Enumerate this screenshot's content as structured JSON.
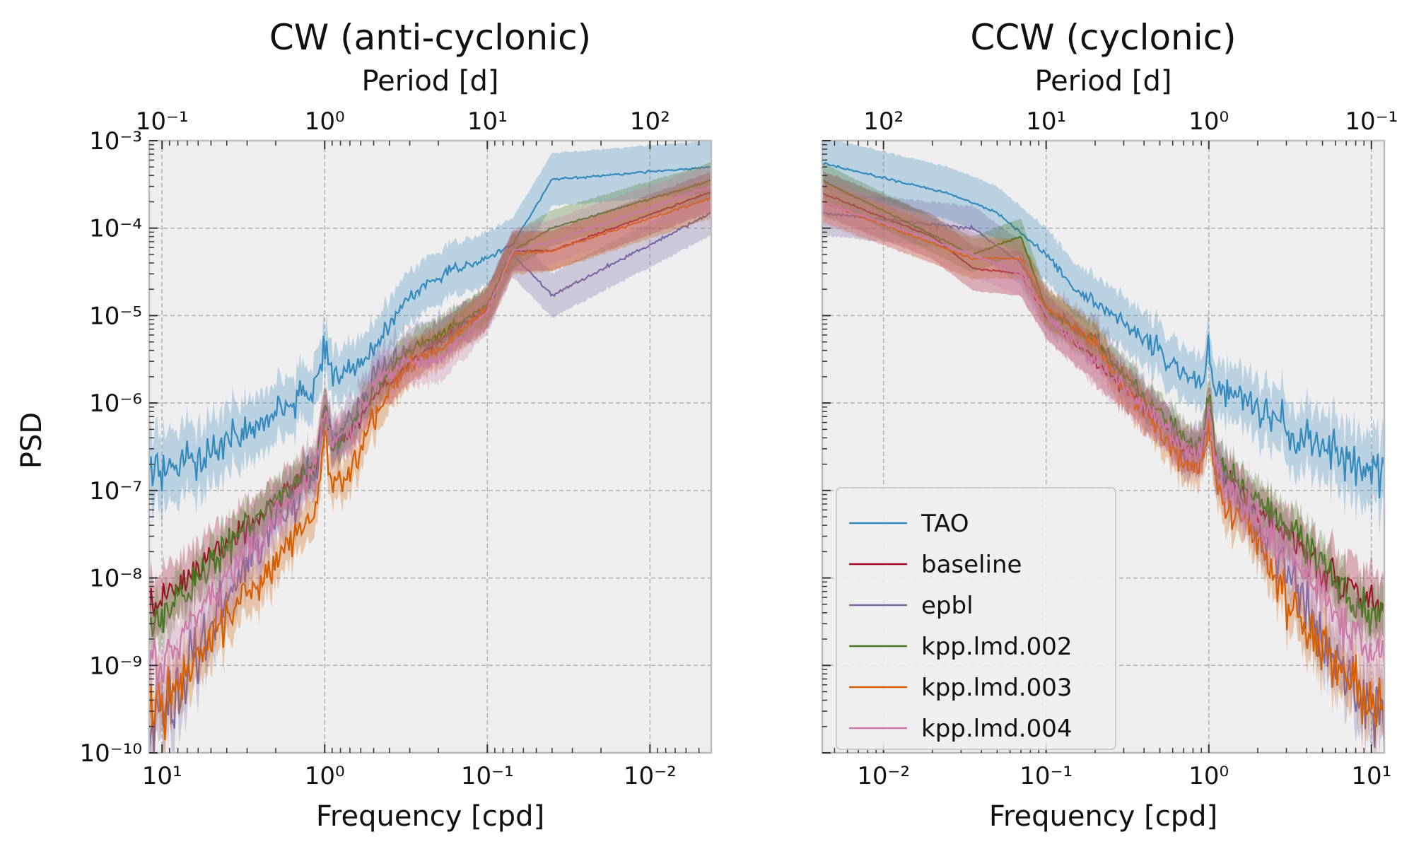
{
  "figure": {
    "ylabel": "PSD",
    "frame_color": "#bbbbbb",
    "plot_bg": "#eeeeee",
    "grid_color": "#b0b0b0"
  },
  "chart_data": [
    {
      "type": "line",
      "title": "CW (anti-cyclonic)",
      "xlabel": "Frequency [cpd]",
      "top_xlabel": "Period [d]",
      "ylabel": "PSD",
      "xscale": "log",
      "yscale": "log",
      "x_direction": "reversed",
      "xlim": [
        12,
        0.0042
      ],
      "ylim": [
        1e-10,
        0.001
      ],
      "grid": true,
      "bottom_ticks": [
        {
          "value": 10,
          "label": "10¹"
        },
        {
          "value": 1,
          "label": "10⁰"
        },
        {
          "value": 0.1,
          "label": "10⁻¹"
        },
        {
          "value": 0.01,
          "label": "10⁻²"
        }
      ],
      "top_ticks": [
        {
          "value": 0.1,
          "label": "10⁻¹"
        },
        {
          "value": 1,
          "label": "10⁰"
        },
        {
          "value": 10,
          "label": "10¹"
        },
        {
          "value": 100,
          "label": "10²"
        }
      ],
      "y_ticks": [
        {
          "value": 0.001,
          "label": "10⁻³"
        },
        {
          "value": 0.0001,
          "label": "10⁻⁴"
        },
        {
          "value": 1e-05,
          "label": "10⁻⁵"
        },
        {
          "value": 1e-06,
          "label": "10⁻⁶"
        },
        {
          "value": 1e-07,
          "label": "10⁻⁷"
        },
        {
          "value": 1e-08,
          "label": "10⁻⁸"
        },
        {
          "value": 1e-09,
          "label": "10⁻⁹"
        },
        {
          "value": 1e-10,
          "label": "10⁻¹⁰"
        }
      ],
      "series": [
        {
          "name": "TAO",
          "color": "#348abd",
          "band": 2.0,
          "noise": 0.55,
          "peak": 2.5,
          "points": [
            [
              12,
              1.6e-07
            ],
            [
              6,
              2.5e-07
            ],
            [
              3,
              5e-07
            ],
            [
              1.5,
              1.2e-06
            ],
            [
              1,
              1.8e-06
            ],
            [
              0.7,
              2.5e-06
            ],
            [
              0.5,
              4e-06
            ],
            [
              0.35,
              1.2e-05
            ],
            [
              0.25,
              2.2e-05
            ],
            [
              0.17,
              3.2e-05
            ],
            [
              0.1,
              4.5e-05
            ],
            [
              0.07,
              6.5e-05
            ],
            [
              0.04,
              0.00036
            ],
            [
              0.0042,
              0.0005
            ]
          ]
        },
        {
          "name": "baseline",
          "color": "#a60628",
          "band": 1.7,
          "noise": 0.45,
          "peak": 3.5,
          "points": [
            [
              12,
              4e-09
            ],
            [
              6,
              1.2e-08
            ],
            [
              3,
              4e-08
            ],
            [
              1.5,
              1.2e-07
            ],
            [
              1,
              2.5e-07
            ],
            [
              0.7,
              4.5e-07
            ],
            [
              0.5,
              1.2e-06
            ],
            [
              0.3,
              3e-06
            ],
            [
              0.2,
              5e-06
            ],
            [
              0.1,
              1.2e-05
            ],
            [
              0.07,
              5.5e-05
            ],
            [
              0.04,
              5.5e-05
            ],
            [
              0.0042,
              0.00026
            ]
          ]
        },
        {
          "name": "epbl",
          "color": "#7a68a6",
          "band": 1.8,
          "noise": 0.8,
          "peak": 3.0,
          "points": [
            [
              12,
              1.5e-10
            ],
            [
              6,
              1.5e-09
            ],
            [
              3,
              1.5e-08
            ],
            [
              1.5,
              9e-08
            ],
            [
              1,
              2.5e-07
            ],
            [
              0.7,
              6e-07
            ],
            [
              0.5,
              2e-06
            ],
            [
              0.3,
              4e-06
            ],
            [
              0.2,
              5e-06
            ],
            [
              0.1,
              1.2e-05
            ],
            [
              0.07,
              5e-05
            ],
            [
              0.04,
              1.7e-05
            ],
            [
              0.0042,
              0.00015
            ]
          ]
        },
        {
          "name": "kpp.lmd.002",
          "color": "#467821",
          "band": 1.6,
          "noise": 0.45,
          "peak": 3.5,
          "points": [
            [
              12,
              2.5e-09
            ],
            [
              6,
              1e-08
            ],
            [
              3,
              4e-08
            ],
            [
              1.5,
              1.2e-07
            ],
            [
              1,
              2.5e-07
            ],
            [
              0.7,
              5e-07
            ],
            [
              0.5,
              1.5e-06
            ],
            [
              0.3,
              4e-06
            ],
            [
              0.2,
              6e-06
            ],
            [
              0.1,
              1.3e-05
            ],
            [
              0.07,
              5.5e-05
            ],
            [
              0.04,
              0.0001
            ],
            [
              0.0042,
              0.00035
            ]
          ]
        },
        {
          "name": "kpp.lmd.003",
          "color": "#d55e00",
          "band": 1.7,
          "noise": 0.65,
          "peak": 4.0,
          "points": [
            [
              12,
              2.5e-10
            ],
            [
              6,
              1.2e-09
            ],
            [
              3,
              6e-09
            ],
            [
              1.5,
              3e-08
            ],
            [
              1,
              1e-07
            ],
            [
              0.7,
              1.5e-07
            ],
            [
              0.5,
              7e-07
            ],
            [
              0.3,
              3e-06
            ],
            [
              0.2,
              4e-06
            ],
            [
              0.1,
              1.2e-05
            ],
            [
              0.07,
              5e-05
            ],
            [
              0.04,
              5.5e-05
            ],
            [
              0.0042,
              0.00022
            ]
          ]
        },
        {
          "name": "kpp.lmd.004",
          "color": "#cc79a7",
          "band": 1.8,
          "noise": 0.6,
          "peak": 3.0,
          "points": [
            [
              12,
              8e-10
            ],
            [
              6,
              4e-09
            ],
            [
              3,
              2e-08
            ],
            [
              1.5,
              9e-08
            ],
            [
              1,
              2.5e-07
            ],
            [
              0.7,
              5e-07
            ],
            [
              0.5,
              1.5e-06
            ],
            [
              0.3,
              3e-06
            ],
            [
              0.2,
              3e-06
            ],
            [
              0.1,
              1.1e-05
            ],
            [
              0.07,
              5.5e-05
            ],
            [
              0.04,
              7e-05
            ],
            [
              0.0042,
              0.0003
            ]
          ]
        }
      ]
    },
    {
      "type": "line",
      "title": "CCW (cyclonic)",
      "xlabel": "Frequency [cpd]",
      "top_xlabel": "Period [d]",
      "xscale": "log",
      "yscale": "log",
      "x_direction": "normal",
      "xlim": [
        0.0042,
        12
      ],
      "ylim": [
        1e-10,
        0.001
      ],
      "grid": true,
      "legend_position": "lower-left",
      "bottom_ticks": [
        {
          "value": 0.01,
          "label": "10⁻²"
        },
        {
          "value": 0.1,
          "label": "10⁻¹"
        },
        {
          "value": 1,
          "label": "10⁰"
        },
        {
          "value": 10,
          "label": "10¹"
        }
      ],
      "top_ticks": [
        {
          "value": 100,
          "label": "10²"
        },
        {
          "value": 10,
          "label": "10¹"
        },
        {
          "value": 1,
          "label": "10⁰"
        },
        {
          "value": 0.1,
          "label": "10⁻¹"
        }
      ],
      "y_ticks": [
        {
          "value": 0.001,
          "label": ""
        },
        {
          "value": 0.0001,
          "label": ""
        },
        {
          "value": 1e-05,
          "label": ""
        },
        {
          "value": 1e-06,
          "label": ""
        },
        {
          "value": 1e-07,
          "label": ""
        },
        {
          "value": 1e-08,
          "label": ""
        },
        {
          "value": 1e-09,
          "label": ""
        },
        {
          "value": 1e-10,
          "label": ""
        }
      ],
      "series": [
        {
          "name": "TAO",
          "color": "#348abd",
          "band": 2.0,
          "noise": 0.55,
          "peak": 2.5,
          "points": [
            [
              0.0042,
              0.00055
            ],
            [
              0.025,
              0.00025
            ],
            [
              0.05,
              0.00015
            ],
            [
              0.1,
              5e-05
            ],
            [
              0.15,
              2e-05
            ],
            [
              0.2,
              1.5e-05
            ],
            [
              0.3,
              8e-06
            ],
            [
              0.5,
              4e-06
            ],
            [
              0.7,
              2e-06
            ],
            [
              1,
              1.5e-06
            ],
            [
              1.5,
              1.2e-06
            ],
            [
              3,
              5e-07
            ],
            [
              6,
              2.5e-07
            ],
            [
              12,
              1.5e-07
            ]
          ]
        },
        {
          "name": "baseline",
          "color": "#a60628",
          "band": 1.8,
          "noise": 0.45,
          "peak": 3.5,
          "points": [
            [
              0.0042,
              0.00025
            ],
            [
              0.02,
              8e-05
            ],
            [
              0.035,
              3.5e-05
            ],
            [
              0.07,
              3e-05
            ],
            [
              0.1,
              1e-05
            ],
            [
              0.2,
              3e-06
            ],
            [
              0.3,
              1.5e-06
            ],
            [
              0.5,
              6e-07
            ],
            [
              0.7,
              3e-07
            ],
            [
              1,
              2.5e-07
            ],
            [
              1.5,
              1e-07
            ],
            [
              3,
              3e-08
            ],
            [
              6,
              1e-08
            ],
            [
              12,
              4e-09
            ]
          ]
        },
        {
          "name": "epbl",
          "color": "#7a68a6",
          "band": 1.8,
          "noise": 0.8,
          "peak": 3.0,
          "points": [
            [
              0.0042,
              0.00015
            ],
            [
              0.035,
              0.0001
            ],
            [
              0.07,
              4e-05
            ],
            [
              0.1,
              1.2e-05
            ],
            [
              0.2,
              5e-06
            ],
            [
              0.3,
              2e-06
            ],
            [
              0.5,
              6e-07
            ],
            [
              0.7,
              3e-07
            ],
            [
              1,
              2.5e-07
            ],
            [
              1.5,
              8e-08
            ],
            [
              3,
              1.2e-08
            ],
            [
              6,
              1.5e-09
            ],
            [
              12,
              1.5e-10
            ]
          ]
        },
        {
          "name": "kpp.lmd.002",
          "color": "#467821",
          "band": 1.6,
          "noise": 0.45,
          "peak": 3.5,
          "points": [
            [
              0.0042,
              0.00035
            ],
            [
              0.035,
              5e-05
            ],
            [
              0.07,
              8e-05
            ],
            [
              0.1,
              1.2e-05
            ],
            [
              0.2,
              5e-06
            ],
            [
              0.3,
              2e-06
            ],
            [
              0.5,
              8e-07
            ],
            [
              0.7,
              4e-07
            ],
            [
              1,
              3e-07
            ],
            [
              1.5,
              1.2e-07
            ],
            [
              3,
              4e-08
            ],
            [
              6,
              1e-08
            ],
            [
              12,
              3e-09
            ]
          ]
        },
        {
          "name": "kpp.lmd.003",
          "color": "#d55e00",
          "band": 1.7,
          "noise": 0.65,
          "peak": 4.0,
          "points": [
            [
              0.0042,
              0.0002
            ],
            [
              0.035,
              4.5e-05
            ],
            [
              0.07,
              4.5e-05
            ],
            [
              0.1,
              1.2e-05
            ],
            [
              0.2,
              5e-06
            ],
            [
              0.3,
              1.5e-06
            ],
            [
              0.5,
              5e-07
            ],
            [
              0.7,
              2e-07
            ],
            [
              1,
              1.5e-07
            ],
            [
              1.5,
              5e-08
            ],
            [
              3,
              6e-09
            ],
            [
              6,
              1e-09
            ],
            [
              12,
              2.5e-10
            ]
          ]
        },
        {
          "name": "kpp.lmd.004",
          "color": "#cc79a7",
          "band": 1.8,
          "noise": 0.6,
          "peak": 3.0,
          "points": [
            [
              0.0042,
              0.0002
            ],
            [
              0.035,
              5e-05
            ],
            [
              0.07,
              3e-05
            ],
            [
              0.1,
              1e-05
            ],
            [
              0.2,
              3e-06
            ],
            [
              0.3,
              1.5e-06
            ],
            [
              0.5,
              6e-07
            ],
            [
              0.7,
              3e-07
            ],
            [
              1,
              2.5e-07
            ],
            [
              1.5,
              8e-08
            ],
            [
              3,
              2e-08
            ],
            [
              6,
              4e-09
            ],
            [
              12,
              1e-09
            ]
          ]
        }
      ]
    }
  ]
}
